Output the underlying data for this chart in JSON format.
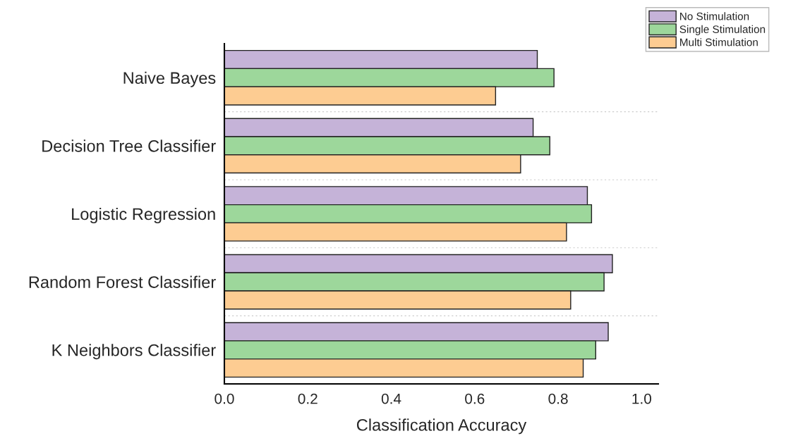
{
  "chart_data": {
    "type": "bar",
    "orientation": "horizontal",
    "xlabel": "Classification Accuracy",
    "categories": [
      "Naive Bayes",
      "Decision Tree Classifier",
      "Logistic Regression",
      "Random Forest Classifier",
      "K Neighbors Classifier"
    ],
    "series": [
      {
        "name": "No Stimulation",
        "color": "#c5b3d8",
        "values": [
          0.75,
          0.74,
          0.87,
          0.93,
          0.92
        ]
      },
      {
        "name": "Single Stimulation",
        "color": "#9dd79b",
        "values": [
          0.79,
          0.78,
          0.88,
          0.91,
          0.89
        ]
      },
      {
        "name": "Multi Stimulation",
        "color": "#fdcc92",
        "values": [
          0.65,
          0.71,
          0.82,
          0.83,
          0.86
        ]
      }
    ],
    "xlim": [
      0,
      1.04
    ],
    "xticks": [
      {
        "value": 0,
        "label": "0.0"
      },
      0.2,
      0.4,
      0.6,
      0.8,
      {
        "value": 1,
        "label": "1.0"
      }
    ],
    "grid": "y",
    "legend": "top right"
  }
}
